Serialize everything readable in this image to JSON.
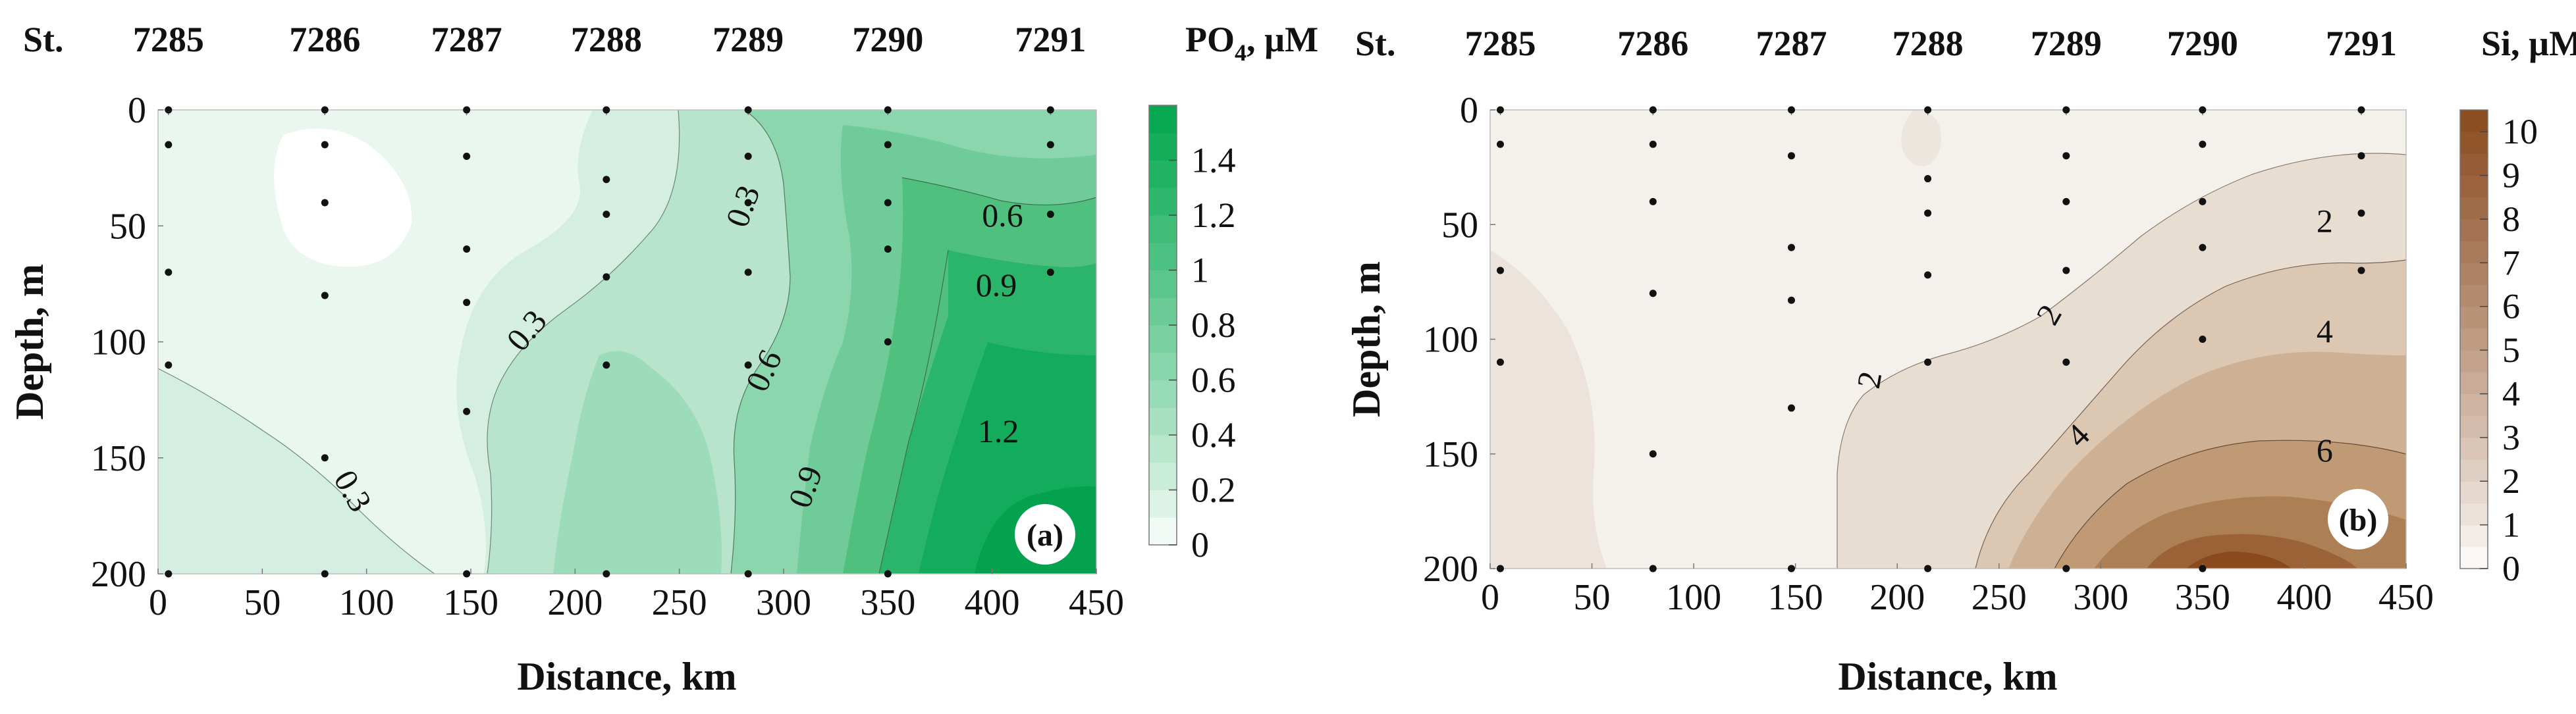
{
  "chart_data": [
    {
      "type": "heatmap",
      "panel_label": "(a)",
      "station_label": "St.",
      "stations": [
        {
          "name": "7285",
          "distance": 5
        },
        {
          "name": "7286",
          "distance": 80
        },
        {
          "name": "7287",
          "distance": 148
        },
        {
          "name": "7288",
          "distance": 215
        },
        {
          "name": "7289",
          "distance": 283
        },
        {
          "name": "7290",
          "distance": 350
        },
        {
          "name": "7291",
          "distance": 428
        }
      ],
      "colorbar_title": "PO",
      "colorbar_title_sub": "4",
      "colorbar_title_unit": ", µM",
      "xlabel": "Distance, km",
      "ylabel": "Depth, m",
      "xlim": [
        0,
        450
      ],
      "ylim": [
        0,
        200
      ],
      "y_inverted": true,
      "xticks": [
        0,
        50,
        100,
        150,
        200,
        250,
        300,
        350,
        400,
        450
      ],
      "yticks": [
        0,
        50,
        100,
        150,
        200
      ],
      "colorbar_ticks": [
        0,
        0.2,
        0.4,
        0.6,
        0.8,
        1,
        1.2,
        1.4
      ],
      "colorbar_range": [
        0,
        1.6
      ],
      "color_low": "#ffffff",
      "color_high": "#00a64c",
      "samples": [
        {
          "distance": 5,
          "depths": [
            0,
            15,
            70,
            110,
            200
          ]
        },
        {
          "distance": 80,
          "depths": [
            0,
            15,
            40,
            80,
            150,
            200
          ]
        },
        {
          "distance": 148,
          "depths": [
            0,
            20,
            60,
            83,
            130,
            200
          ]
        },
        {
          "distance": 215,
          "depths": [
            0,
            30,
            45,
            72,
            110,
            200
          ]
        },
        {
          "distance": 283,
          "depths": [
            0,
            20,
            40,
            70,
            110,
            200
          ]
        },
        {
          "distance": 350,
          "depths": [
            0,
            15,
            40,
            60,
            100,
            200
          ]
        },
        {
          "distance": 428,
          "depths": [
            0,
            15,
            45,
            70
          ]
        }
      ],
      "contour_labels": [
        {
          "text": "0.3",
          "distance": 282,
          "depth": 42,
          "angle": -70
        },
        {
          "text": "0.6",
          "distance": 405,
          "depth": 47,
          "angle": 0
        },
        {
          "text": "0.9",
          "distance": 402,
          "depth": 77,
          "angle": 0
        },
        {
          "text": "0.3",
          "distance": 178,
          "depth": 96,
          "angle": -50
        },
        {
          "text": "0.6",
          "distance": 292,
          "depth": 113,
          "angle": -65
        },
        {
          "text": "1.2",
          "distance": 403,
          "depth": 140,
          "angle": 0
        },
        {
          "text": "0.9",
          "distance": 312,
          "depth": 163,
          "angle": -70
        },
        {
          "text": "0.3",
          "distance": 92,
          "depth": 165,
          "angle": 60
        }
      ]
    },
    {
      "type": "heatmap",
      "panel_label": "(b)",
      "station_label": "St.",
      "stations": [
        {
          "name": "7285",
          "distance": 5
        },
        {
          "name": "7286",
          "distance": 80
        },
        {
          "name": "7287",
          "distance": 148
        },
        {
          "name": "7288",
          "distance": 215
        },
        {
          "name": "7289",
          "distance": 283
        },
        {
          "name": "7290",
          "distance": 350
        },
        {
          "name": "7291",
          "distance": 428
        }
      ],
      "colorbar_title": "Si, µM",
      "xlabel": "Distance, km",
      "ylabel": "Depth, m",
      "xlim": [
        0,
        450
      ],
      "ylim": [
        0,
        200
      ],
      "y_inverted": true,
      "xticks": [
        0,
        50,
        100,
        150,
        200,
        250,
        300,
        350,
        400,
        450
      ],
      "yticks": [
        0,
        50,
        100,
        150,
        200
      ],
      "colorbar_ticks": [
        0,
        1,
        2,
        3,
        4,
        5,
        6,
        7,
        8,
        9,
        10
      ],
      "colorbar_range": [
        0,
        10.5
      ],
      "color_low": "#ffffff",
      "color_high": "#8a4a1e",
      "samples": [
        {
          "distance": 5,
          "depths": [
            0,
            15,
            70,
            110,
            200
          ]
        },
        {
          "distance": 80,
          "depths": [
            0,
            15,
            40,
            80,
            150,
            200
          ]
        },
        {
          "distance": 148,
          "depths": [
            0,
            20,
            60,
            83,
            130,
            200
          ]
        },
        {
          "distance": 215,
          "depths": [
            0,
            30,
            45,
            72,
            110,
            200
          ]
        },
        {
          "distance": 283,
          "depths": [
            0,
            20,
            40,
            70,
            110,
            200
          ]
        },
        {
          "distance": 350,
          "depths": [
            0,
            15,
            40,
            60,
            100,
            200
          ]
        },
        {
          "distance": 428,
          "depths": [
            0,
            20,
            45,
            70
          ]
        }
      ],
      "contour_labels": [
        {
          "text": "2",
          "distance": 410,
          "depth": 50,
          "angle": 0
        },
        {
          "text": "2",
          "distance": 276,
          "depth": 90,
          "angle": -60
        },
        {
          "text": "4",
          "distance": 410,
          "depth": 98,
          "angle": 0
        },
        {
          "text": "2",
          "distance": 188,
          "depth": 118,
          "angle": -80
        },
        {
          "text": "4",
          "distance": 290,
          "depth": 143,
          "angle": -45
        },
        {
          "text": "6",
          "distance": 410,
          "depth": 150,
          "angle": 0
        }
      ]
    }
  ]
}
